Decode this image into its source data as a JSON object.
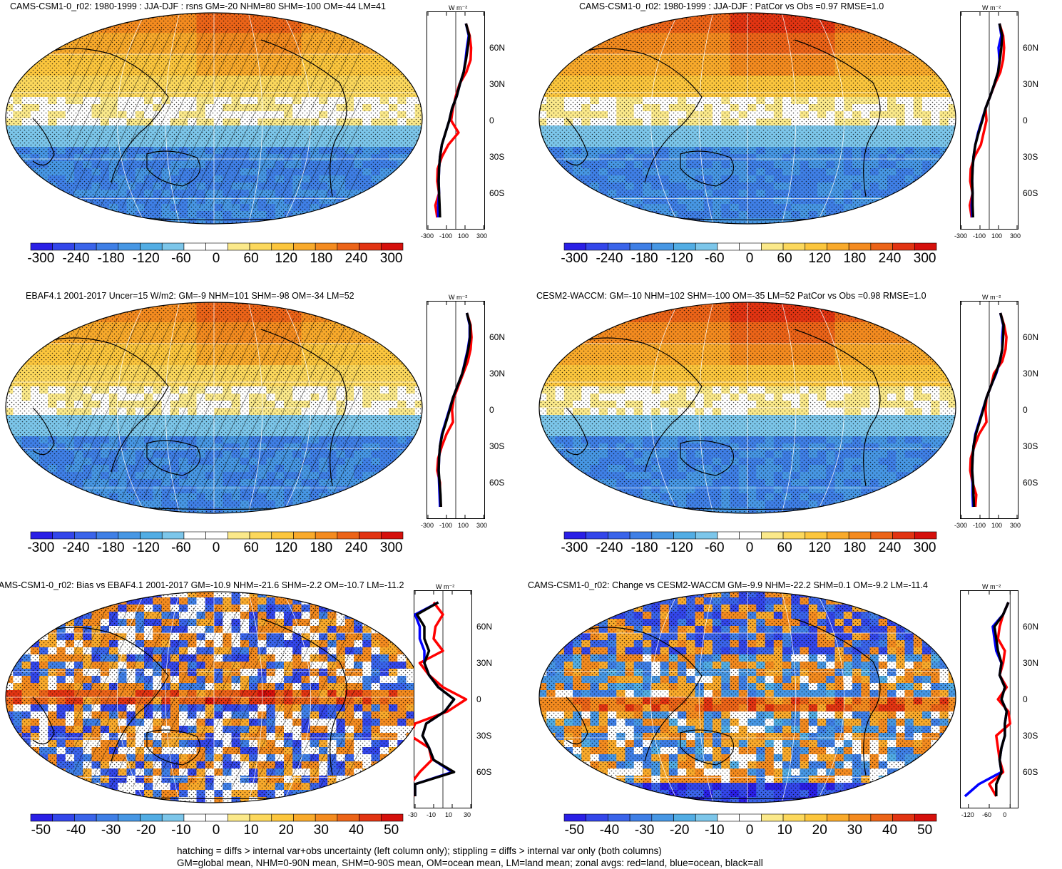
{
  "panels": [
    {
      "id": "p1",
      "title": "CAMS-CSM1-0_r02: 1980-1999 : JJA-DJF : rsns GM=-20 NHM=80 SHM=-100 OM=-44 LM=41",
      "units": "W m⁻²",
      "zonal_xticks": [
        "-300",
        "-100",
        "100",
        "300"
      ],
      "zonal_xlim": [
        -300,
        300
      ],
      "lat_ticks": [
        "60N",
        "30N",
        "0",
        "30S",
        "60S"
      ],
      "cbar_labels": [
        "-300",
        "-240",
        "-180",
        "-120",
        "-60",
        "0",
        "60",
        "120",
        "180",
        "240",
        "300"
      ],
      "palette": "full"
    },
    {
      "id": "p2",
      "title": "CAMS-CSM1-0_r02: 1980-1999 : JJA-DJF : PatCor vs Obs =0.97 RMSE=1.0",
      "units": "W m⁻²",
      "zonal_xticks": [
        "-300",
        "-100",
        "100",
        "300"
      ],
      "zonal_xlim": [
        -300,
        300
      ],
      "lat_ticks": [
        "60N",
        "30N",
        "0",
        "30S",
        "60S"
      ],
      "cbar_labels": [
        "-300",
        "-240",
        "-180",
        "-120",
        "-60",
        "0",
        "60",
        "120",
        "180",
        "240",
        "300"
      ],
      "palette": "full"
    },
    {
      "id": "p3",
      "title": "EBAF4.1 2001-2017 Uncer=15 W/m2: GM=-9 NHM=101 SHM=-98 OM=-34 LM=52",
      "units": "W m⁻²",
      "zonal_xticks": [
        "-300",
        "-100",
        "100",
        "300"
      ],
      "zonal_xlim": [
        -300,
        300
      ],
      "lat_ticks": [
        "60N",
        "30N",
        "0",
        "30S",
        "60S"
      ],
      "cbar_labels": [
        "-300",
        "-240",
        "-180",
        "-120",
        "-60",
        "0",
        "60",
        "120",
        "180",
        "240",
        "300"
      ],
      "palette": "full"
    },
    {
      "id": "p4",
      "title": "CESM2-WACCM: GM=-10 NHM=102 SHM=-100 OM=-35 LM=52 PatCor vs Obs =0.98 RMSE=1.0",
      "units": "W m⁻²",
      "zonal_xticks": [
        "-300",
        "-100",
        "100",
        "300"
      ],
      "zonal_xlim": [
        -300,
        300
      ],
      "lat_ticks": [
        "60N",
        "30N",
        "0",
        "30S",
        "60S"
      ],
      "cbar_labels": [
        "-300",
        "-240",
        "-180",
        "-120",
        "-60",
        "0",
        "60",
        "120",
        "180",
        "240",
        "300"
      ],
      "palette": "full"
    },
    {
      "id": "p5",
      "title": "AMS-CSM1-0_r02: Bias vs EBAF4.1 2001-2017 GM=-10.9 NHM=-21.6 SHM=-2.2 OM=-10.7 LM=-11.2",
      "units": "W m⁻²",
      "zonal_xticks": [
        "-30",
        "-10",
        "10",
        "30"
      ],
      "zonal_xlim": [
        -30,
        30
      ],
      "lat_ticks": [
        "60N",
        "30N",
        "0",
        "30S",
        "60S"
      ],
      "cbar_labels": [
        "-50",
        "-40",
        "-30",
        "-20",
        "-10",
        "0",
        "10",
        "20",
        "30",
        "40",
        "50"
      ],
      "palette": "diff"
    },
    {
      "id": "p6",
      "title": "CAMS-CSM1-0_r02: Change vs CESM2-WACCM GM=-9.9 NHM=-22.2 SHM=0.1 OM=-9.2 LM=-11.4",
      "units": "W m⁻²",
      "zonal_xticks": [
        "-120",
        "-60",
        "0"
      ],
      "zonal_xlim": [
        -140,
        20
      ],
      "lat_ticks": [
        "60N",
        "30N",
        "0",
        "30S",
        "60S"
      ],
      "cbar_labels": [
        "-50",
        "-40",
        "-30",
        "-20",
        "-10",
        "0",
        "10",
        "20",
        "30",
        "40",
        "50"
      ],
      "palette": "diff"
    }
  ],
  "footnote": {
    "line1": "hatching = diffs > internal var+obs uncertainty (left column only); stippling = diffs > internal var only (both columns)",
    "line2": "GM=global mean, NHM=0-90N mean, SHM=0-90S mean, OM=ocean mean, LM=land mean; zonal avgs: red=land, blue=ocean, black=all"
  },
  "colors": {
    "land": "#ff0000",
    "ocean": "#0000ff",
    "all": "#000000",
    "full_palette": [
      "#2a1fe6",
      "#3346ea",
      "#3a64ea",
      "#3f7fe6",
      "#4797e4",
      "#52ade4",
      "#7cc6ea",
      "#ffffff",
      "#ffffff",
      "#fbe98a",
      "#fcd85c",
      "#fcc63d",
      "#f9aa2b",
      "#f48b1f",
      "#ec6418",
      "#e23412",
      "#d5100c"
    ],
    "diff_palette": [
      "#2a1fe6",
      "#3346ea",
      "#3a64ea",
      "#3f7fe6",
      "#4797e4",
      "#52ade4",
      "#7cc6ea",
      "#ffffff",
      "#ffffff",
      "#fbe98a",
      "#fcd85c",
      "#fcc63d",
      "#f9aa2b",
      "#f48b1f",
      "#ec6418",
      "#e23412",
      "#d5100c"
    ]
  },
  "chart_data": [
    {
      "type": "heatmap",
      "title": "CAMS-CSM1-0_r02: 1980-1999 : JJA-DJF : rsns GM=-20 NHM=80 SHM=-100 OM=-44 LM=41",
      "colorbar_range": [
        -300,
        300
      ],
      "zonal_mean": {
        "xlim": [
          -300,
          300
        ],
        "lat": [
          80,
          70,
          60,
          50,
          40,
          30,
          20,
          10,
          0,
          -10,
          -20,
          -30,
          -40,
          -50,
          -60,
          -70,
          -80
        ],
        "series": [
          {
            "name": "land",
            "values": [
              110,
              150,
              165,
              160,
              115,
              40,
              0,
              -30,
              -50,
              30,
              -80,
              -150,
              -195,
              -200,
              -180,
              -220,
              -200
            ]
          },
          {
            "name": "ocean",
            "values": [
              110,
              140,
              120,
              105,
              85,
              45,
              10,
              -40,
              -70,
              -110,
              -150,
              -170,
              -180,
              -185,
              -180,
              -190,
              -190
            ]
          },
          {
            "name": "all",
            "values": [
              110,
              145,
              130,
              110,
              85,
              45,
              10,
              -40,
              -70,
              -110,
              -150,
              -170,
              -180,
              -185,
              -180,
              -175,
              -170
            ]
          }
        ]
      }
    },
    {
      "type": "heatmap",
      "title": "CAMS-CSM1-0_r02: 1980-1999 : JJA-DJF : PatCor vs Obs =0.97 RMSE=1.0",
      "colorbar_range": [
        -300,
        300
      ],
      "zonal_mean": {
        "xlim": [
          -300,
          300
        ],
        "lat": [
          80,
          70,
          60,
          50,
          40,
          30,
          20,
          10,
          0,
          -10,
          -20,
          -30,
          -40,
          -50,
          -60,
          -70,
          -80
        ],
        "series": [
          {
            "name": "land",
            "values": [
              110,
              150,
              160,
              150,
              120,
              60,
              10,
              -40,
              -30,
              -60,
              -90,
              -160,
              -200,
              -205,
              -180,
              -210,
              -190
            ]
          },
          {
            "name": "ocean",
            "values": [
              110,
              130,
              100,
              110,
              95,
              55,
              10,
              -40,
              -80,
              -120,
              -150,
              -170,
              -180,
              -185,
              -180,
              -190,
              -185
            ]
          },
          {
            "name": "all",
            "values": [
              110,
              140,
              130,
              115,
              95,
              55,
              10,
              -40,
              -75,
              -115,
              -150,
              -170,
              -180,
              -185,
              -180,
              -180,
              -175
            ]
          }
        ]
      }
    },
    {
      "type": "heatmap",
      "title": "EBAF4.1 2001-2017 Uncer=15 W/m2: GM=-9 NHM=101 SHM=-98 OM=-34 LM=52",
      "colorbar_range": [
        -300,
        300
      ],
      "zonal_mean": {
        "xlim": [
          -300,
          300
        ],
        "lat": [
          80,
          70,
          60,
          50,
          40,
          30,
          20,
          10,
          0,
          -10,
          -20,
          -30,
          -40,
          -50,
          -60,
          -70,
          -80
        ],
        "series": [
          {
            "name": "land",
            "values": [
              120,
              160,
              170,
              160,
              130,
              80,
              30,
              -20,
              -40,
              -30,
              -100,
              -150,
              -190,
              -200,
              -170,
              -170,
              -160
            ]
          },
          {
            "name": "ocean",
            "values": [
              120,
              150,
              150,
              130,
              100,
              70,
              20,
              -30,
              -70,
              -110,
              -150,
              -170,
              -180,
              -185,
              -180,
              -175,
              -170
            ]
          },
          {
            "name": "all",
            "values": [
              120,
              155,
              155,
              135,
              105,
              70,
              20,
              -30,
              -65,
              -105,
              -145,
              -170,
              -180,
              -185,
              -175,
              -165,
              -160
            ]
          }
        ]
      }
    },
    {
      "type": "heatmap",
      "title": "CESM2-WACCM: GM=-10 NHM=102 SHM=-100 OM=-35 LM=52 PatCor vs Obs =0.98 RMSE=1.0",
      "colorbar_range": [
        -300,
        300
      ],
      "zonal_mean": {
        "xlim": [
          -300,
          300
        ],
        "lat": [
          80,
          70,
          60,
          50,
          40,
          30,
          20,
          10,
          0,
          -10,
          -20,
          -30,
          -40,
          -50,
          -60,
          -70,
          -80
        ],
        "series": [
          {
            "name": "land",
            "values": [
              120,
              160,
              185,
              175,
              140,
              50,
              20,
              -30,
              -40,
              -30,
              -110,
              -160,
              -200,
              -205,
              -180,
              -140,
              -150
            ]
          },
          {
            "name": "ocean",
            "values": [
              120,
              150,
              140,
              140,
              115,
              75,
              20,
              -30,
              -70,
              -110,
              -150,
              -170,
              -180,
              -185,
              -180,
              -180,
              -175
            ]
          },
          {
            "name": "all",
            "values": [
              120,
              155,
              150,
              140,
              115,
              70,
              20,
              -30,
              -65,
              -105,
              -145,
              -170,
              -180,
              -185,
              -175,
              -170,
              -165
            ]
          }
        ]
      }
    },
    {
      "type": "heatmap",
      "title": "AMS-CSM1-0_r02: Bias vs EBAF4.1 2001-2017 GM=-10.9 NHM=-21.6 SHM=-2.2 OM=-10.7 LM=-11.2",
      "colorbar_range": [
        -50,
        50
      ],
      "zonal_mean": {
        "xlim": [
          -30,
          30
        ],
        "lat": [
          80,
          70,
          60,
          50,
          40,
          30,
          20,
          10,
          0,
          -10,
          -20,
          -30,
          -40,
          -50,
          -60,
          -70,
          -80
        ],
        "series": [
          {
            "name": "land",
            "values": [
              -10,
              0,
              -8,
              -10,
              0,
              -25,
              -15,
              0,
              25,
              5,
              -30,
              -35,
              -15,
              -12,
              -25,
              -35,
              -30
            ]
          },
          {
            "name": "ocean",
            "values": [
              -5,
              -30,
              -25,
              -25,
              -20,
              -20,
              -15,
              -5,
              12,
              2,
              -18,
              -22,
              -15,
              -10,
              10,
              -30,
              -30
            ]
          },
          {
            "name": "all",
            "values": [
              -5,
              -28,
              -20,
              -20,
              -15,
              -20,
              -15,
              -5,
              12,
              2,
              -18,
              -22,
              -15,
              -10,
              12,
              -30,
              -30
            ]
          }
        ]
      }
    },
    {
      "type": "heatmap",
      "title": "CAMS-CSM1-0_r02: Change vs CESM2-WACCM GM=-9.9 NHM=-22.2 SHM=0.1 OM=-9.2 LM=-11.4",
      "colorbar_range": [
        -50,
        50
      ],
      "zonal_mean": {
        "xlim": [
          -140,
          20
        ],
        "lat": [
          80,
          70,
          60,
          50,
          40,
          30,
          20,
          10,
          0,
          -10,
          -20,
          -30,
          -40,
          -50,
          -60,
          -70,
          -80
        ],
        "series": [
          {
            "name": "land",
            "values": [
              -5,
              -20,
              -30,
              -35,
              -15,
              -20,
              -30,
              -10,
              -35,
              -5,
              0,
              -40,
              -35,
              -30,
              -20,
              -60,
              -40
            ]
          },
          {
            "name": "ocean",
            "values": [
              -5,
              -20,
              -50,
              -45,
              -40,
              -25,
              -30,
              -15,
              -25,
              -10,
              -15,
              -15,
              -25,
              -30,
              -25,
              -90,
              -130
            ]
          },
          {
            "name": "all",
            "values": [
              -5,
              -20,
              -45,
              -40,
              -35,
              -25,
              -30,
              -15,
              -25,
              -10,
              -15,
              -15,
              -25,
              -30,
              -25,
              -40,
              -40
            ]
          }
        ]
      }
    }
  ]
}
